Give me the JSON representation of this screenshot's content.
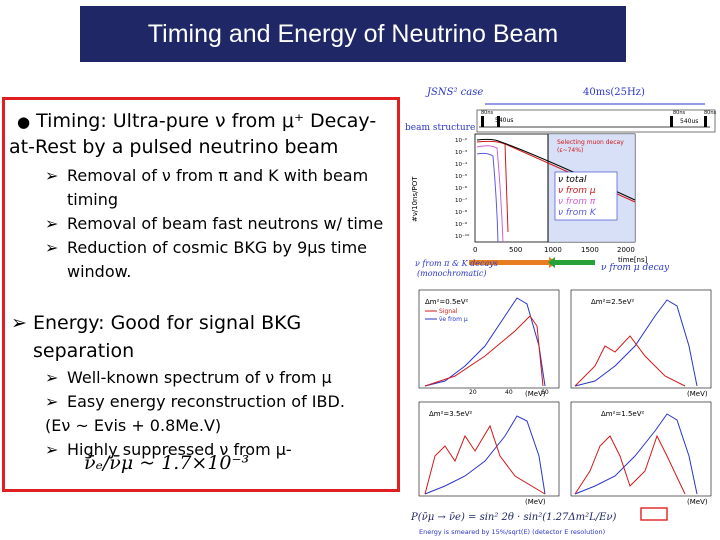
{
  "title": "Timing and Energy of Neutrino Beam",
  "timing": {
    "bullet": "●",
    "label": "Timing:",
    "line1": " Ultra-pure ν from μ⁺ Decay-",
    "line2": "at-Rest by a pulsed neutrino beam",
    "items": [
      {
        "a": "Removal of ν from π and K  with beam",
        "b": "timing"
      },
      {
        "a": "Removal of beam fast neutrons w/ time"
      },
      {
        "a": "Reduction of cosmic BKG by 9μs time",
        "b": "window."
      }
    ]
  },
  "energy": {
    "label": "Energy:",
    "line1": "  Good for signal BKG",
    "line2": "separation",
    "items": [
      {
        "a": "Well-known spectrum of ν from μ"
      },
      {
        "a": "Easy energy reconstruction of IBD.",
        "b": "(Eν ~ Evis + 0.8Me.V)"
      },
      {
        "a": "Highly suppressed ν from μ-"
      }
    ]
  },
  "formula": {
    "text": "ν̄ₑ/ν̄μ ~ 1.7×10⁻³"
  },
  "timing_figure": {
    "case_label": "JSNS² case",
    "rate_label": "40ms(25Hz)",
    "beam_structure": "beam structure",
    "pulse_1": "540us",
    "pulse_2": "540us",
    "pulse_a": "80ns",
    "pulse_b": "80ns",
    "pulse_c": "80ns",
    "ylabel": "#ν/10ns/POT",
    "xlabel": "time[ns]",
    "x_ticks": [
      "0",
      "500",
      "1000",
      "1500",
      "2000"
    ],
    "y_ticks": [
      "10⁻²",
      "10⁻³",
      "10⁻⁴",
      "10⁻⁵",
      "10⁻⁶",
      "10⁻⁷",
      "10⁻⁸",
      "10⁻⁹",
      "10⁻¹⁰"
    ],
    "select_label_1": "Selecting muon decay",
    "select_label_2": "(ε~74%)",
    "legend": [
      "ν total",
      "ν from μ",
      "ν from π",
      "ν from K"
    ],
    "bottom_left": "ν from π & K decays",
    "bottom_left2": "(monochromatic)",
    "bottom_right": "ν from μ decay"
  },
  "energy_figures": {
    "panels": [
      {
        "label": "Δm²=0.5eV²"
      },
      {
        "label": "Δm²=2.5eV²"
      },
      {
        "label": "Δm²=3.5eV²"
      },
      {
        "label": "Δm²=1.5eV²"
      }
    ],
    "legend_signal": "Signal",
    "legend_bkg": "ν̄e from μ",
    "unit": "(MeV)",
    "ticks_x": [
      "20",
      "40",
      "60"
    ],
    "oscillation_formula": "P(ν̄μ → ν̄e) = sin² 2θ · sin²(1.27Δm²L/Eν)",
    "footnote": "Energy is smeared by 15%/sqrt(E) (detector E resolution)"
  }
}
